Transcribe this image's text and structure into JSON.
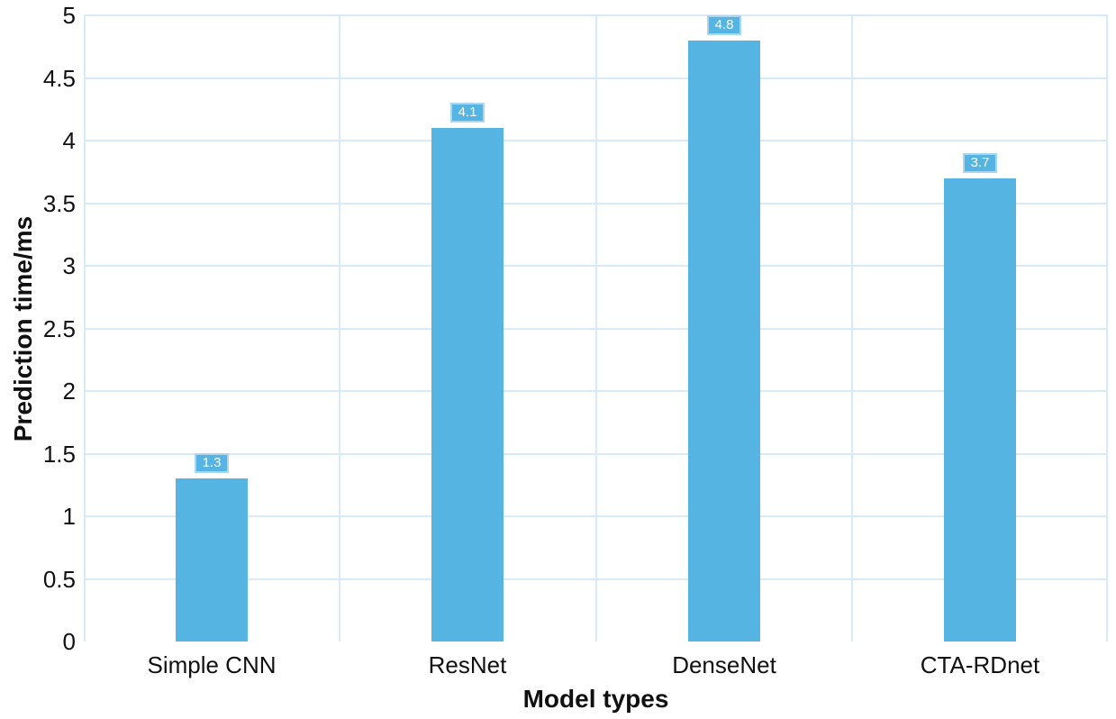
{
  "chart_data": {
    "type": "bar",
    "title": "",
    "categories": [
      "Simple CNN",
      "ResNet",
      "DenseNet",
      "CTA-RDnet"
    ],
    "values": [
      1.3,
      4.1,
      4.8,
      3.7
    ],
    "value_labels": [
      "1.3",
      "4.1",
      "4.8",
      "3.7"
    ],
    "xlabel": "Model types",
    "ylabel": "Prediction time/ms",
    "ylim": [
      0,
      5
    ],
    "ytick_values": [
      0,
      0.5,
      1,
      1.5,
      2,
      2.5,
      3,
      3.5,
      4,
      4.5,
      5
    ],
    "ytick_labels": [
      "0",
      "0.5",
      "1",
      "1.5",
      "2",
      "2.5",
      "3",
      "3.5",
      "4",
      "4.5",
      "5"
    ],
    "grid": {
      "horizontal": true,
      "vertical": true,
      "bottom_baseline": false
    },
    "legend_position": "none",
    "colors": {
      "bar": "#56b4e2",
      "gridline": "#d7eaf7",
      "data_label_bg": "#56b4e2",
      "data_label_border": "#a9d6f0",
      "data_label_text": "#ffffff",
      "axis_text": "#111111"
    }
  }
}
